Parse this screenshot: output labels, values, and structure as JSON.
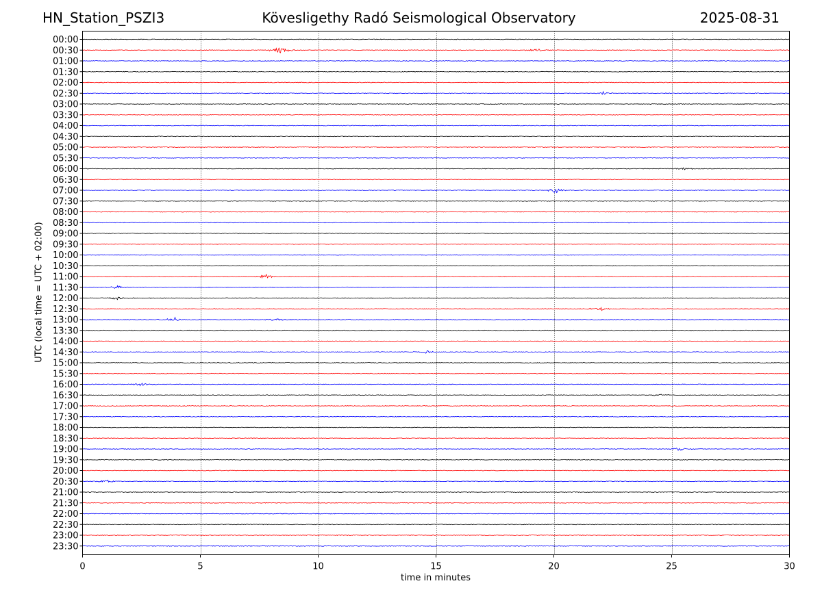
{
  "header": {
    "station": "HN_Station_PSZI3",
    "observatory": "Kövesligethy Radó Seismological Observatory",
    "date": "2025-08-31"
  },
  "chart_data": {
    "type": "line",
    "subtype": "seismic helicorder",
    "title": "Kövesligethy Radó Seismological Observatory",
    "xlabel": "time in minutes",
    "ylabel": "UTC (local time = UTC + 02:00)",
    "xlim": [
      0,
      30
    ],
    "x_ticks": [
      0,
      5,
      10,
      15,
      20,
      25,
      30
    ],
    "grid": "vertical dotted lines at 5-minute ticks",
    "row_colors": [
      "#000000",
      "#ff0000",
      "#0000ff"
    ],
    "rows": [
      "00:00",
      "00:30",
      "01:00",
      "01:30",
      "02:00",
      "02:30",
      "03:00",
      "03:30",
      "04:00",
      "04:30",
      "05:00",
      "05:30",
      "06:00",
      "06:30",
      "07:00",
      "07:30",
      "08:00",
      "08:30",
      "09:00",
      "09:30",
      "10:00",
      "10:30",
      "11:00",
      "11:30",
      "12:00",
      "12:30",
      "13:00",
      "13:30",
      "14:00",
      "14:30",
      "15:00",
      "15:30",
      "16:00",
      "16:30",
      "17:00",
      "17:30",
      "18:00",
      "18:30",
      "19:00",
      "19:30",
      "20:00",
      "20:30",
      "21:00",
      "21:30",
      "22:00",
      "22:30",
      "23:00",
      "23:30"
    ],
    "events": [
      {
        "row": "00:30",
        "minute": 8.4,
        "amplitude": 0.35
      },
      {
        "row": "00:30",
        "minute": 19.3,
        "amplitude": 0.15
      },
      {
        "row": "02:30",
        "minute": 22.1,
        "amplitude": 0.15
      },
      {
        "row": "06:00",
        "minute": 25.6,
        "amplitude": 0.12
      },
      {
        "row": "07:00",
        "minute": 20.1,
        "amplitude": 0.25
      },
      {
        "row": "11:00",
        "minute": 7.8,
        "amplitude": 0.2
      },
      {
        "row": "11:30",
        "minute": 1.5,
        "amplitude": 0.15
      },
      {
        "row": "12:00",
        "minute": 1.4,
        "amplitude": 0.18
      },
      {
        "row": "12:30",
        "minute": 22.0,
        "amplitude": 0.18
      },
      {
        "row": "13:00",
        "minute": 3.9,
        "amplitude": 0.22
      },
      {
        "row": "13:00",
        "minute": 8.2,
        "amplitude": 0.15
      },
      {
        "row": "14:30",
        "minute": 14.6,
        "amplitude": 0.12
      },
      {
        "row": "16:00",
        "minute": 2.5,
        "amplitude": 0.18
      },
      {
        "row": "16:30",
        "minute": 24.5,
        "amplitude": 0.12
      },
      {
        "row": "19:00",
        "minute": 25.3,
        "amplitude": 0.15
      },
      {
        "row": "20:30",
        "minute": 1.0,
        "amplitude": 0.15
      }
    ]
  }
}
